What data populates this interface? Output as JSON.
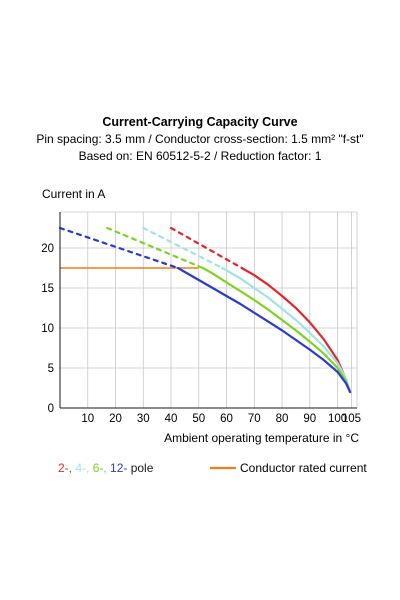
{
  "chart_data": {
    "type": "line",
    "title": "Current-Carrying Capacity Curve",
    "subtitle_line1": "Pin spacing: 3.5 mm / Conductor cross-section: 1.5 mm² \"f-st\"",
    "subtitle_line2": "Based on: EN 60512-5-2 / Reduction factor: 1",
    "ylabel": "Current in A",
    "xlabel": "Ambient operating temperature in °C",
    "xlim": [
      0,
      107
    ],
    "ylim": [
      0,
      24.5
    ],
    "xticks": [
      10,
      20,
      30,
      40,
      50,
      60,
      70,
      80,
      90,
      100,
      105
    ],
    "yticks": [
      0,
      5,
      10,
      15,
      20
    ],
    "grid": true,
    "series": [
      {
        "pole": "2-",
        "color": "#e3262b",
        "dashed": [
          [
            40,
            22.5
          ],
          [
            65.5,
            17.5
          ]
        ],
        "solid": [
          [
            65.5,
            17.5
          ],
          [
            70,
            16.6
          ],
          [
            75,
            15.4
          ],
          [
            80,
            14.0
          ],
          [
            85,
            12.5
          ],
          [
            90,
            10.7
          ],
          [
            95,
            8.6
          ],
          [
            100,
            6.0
          ],
          [
            103,
            3.6
          ],
          [
            104.5,
            2.0
          ]
        ]
      },
      {
        "pole": "4-",
        "color": "#9fe3e6",
        "dashed": [
          [
            30,
            22.5
          ],
          [
            58.5,
            17.5
          ]
        ],
        "solid": [
          [
            58.5,
            17.5
          ],
          [
            65,
            16.2
          ],
          [
            70,
            15.0
          ],
          [
            75,
            13.8
          ],
          [
            80,
            12.4
          ],
          [
            85,
            11.0
          ],
          [
            90,
            9.4
          ],
          [
            95,
            7.7
          ],
          [
            100,
            5.6
          ],
          [
            103,
            3.7
          ],
          [
            104.5,
            2.0
          ]
        ]
      },
      {
        "pole": "6-",
        "color": "#7ed320",
        "dashed": [
          [
            17,
            22.5
          ],
          [
            51.5,
            17.5
          ]
        ],
        "solid": [
          [
            51.5,
            17.5
          ],
          [
            55,
            16.8
          ],
          [
            60,
            15.7
          ],
          [
            65,
            14.6
          ],
          [
            70,
            13.5
          ],
          [
            75,
            12.3
          ],
          [
            80,
            11.0
          ],
          [
            85,
            9.7
          ],
          [
            90,
            8.3
          ],
          [
            95,
            6.8
          ],
          [
            100,
            5.0
          ],
          [
            103,
            3.4
          ],
          [
            104.5,
            2.0
          ]
        ]
      },
      {
        "pole": "12-",
        "color": "#2a3ccf",
        "dashed": [
          [
            0,
            22.5
          ],
          [
            42.5,
            17.5
          ]
        ],
        "solid": [
          [
            42.5,
            17.5
          ],
          [
            45,
            17.0
          ],
          [
            50,
            16.0
          ],
          [
            55,
            15.0
          ],
          [
            60,
            14.0
          ],
          [
            65,
            13.0
          ],
          [
            70,
            11.9
          ],
          [
            75,
            10.8
          ],
          [
            80,
            9.7
          ],
          [
            85,
            8.5
          ],
          [
            90,
            7.3
          ],
          [
            95,
            6.0
          ],
          [
            100,
            4.5
          ],
          [
            103,
            3.1
          ],
          [
            104.5,
            2.0
          ]
        ]
      }
    ],
    "rated_current": {
      "value": 17.5,
      "x_end": 50,
      "color": "#f07d17"
    },
    "legend": {
      "poles": [
        "2-",
        "4-",
        "6-",
        "12-"
      ],
      "pole_suffix": " pole",
      "separator": ", ",
      "rated_label": "Conductor rated current"
    }
  }
}
